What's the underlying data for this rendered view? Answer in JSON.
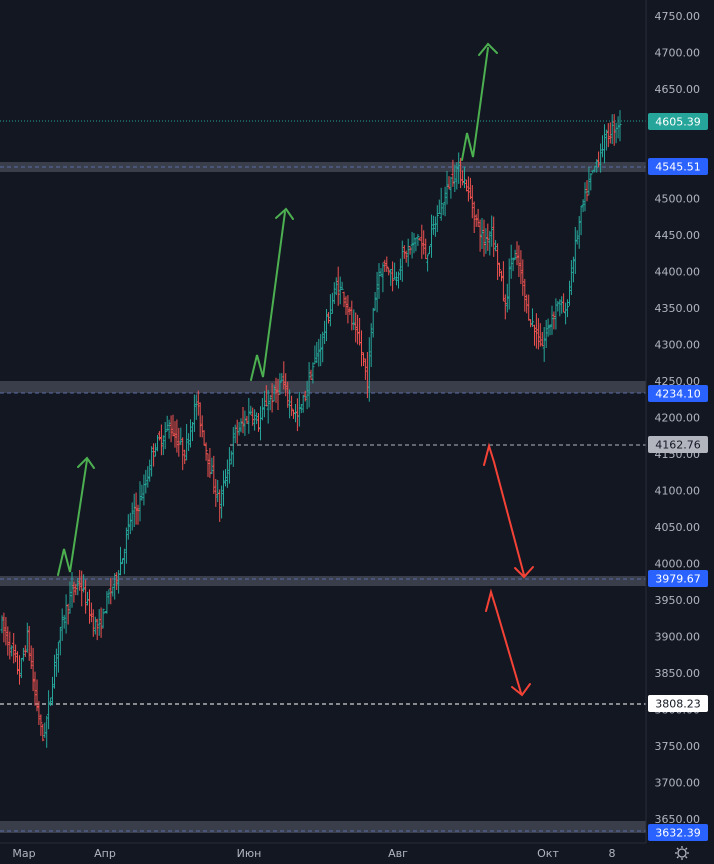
{
  "chart_data": {
    "type": "ohlc",
    "title": "",
    "xlabel": "",
    "ylabel": "",
    "ylim": [
      3622,
      4765
    ],
    "y_ticks": [
      3650,
      3700,
      3750,
      3800,
      3850,
      3900,
      3950,
      4000,
      4050,
      4100,
      4150,
      4200,
      4250,
      4300,
      4350,
      4400,
      4450,
      4500,
      4550,
      4600,
      4650,
      4700,
      4750
    ],
    "x_ticks": [
      "Мар",
      "Апр",
      "Июн",
      "Авг",
      "Окт",
      "8"
    ],
    "grid": false,
    "colors": {
      "background": "#131722",
      "up": "#26a69a",
      "down": "#ef5350",
      "zone": "#363a45",
      "arrow_up": "#4caf50",
      "arrow_down": "#f44336",
      "price_tag_last": "#26a69a",
      "price_tag_level": "#2962ff",
      "price_tag_grey": "#b2b5be",
      "price_tag_white": "#ffffff"
    },
    "last_price": 4605.39,
    "levels": [
      {
        "value": 4545.51,
        "style": "zone",
        "label": "4545.51"
      },
      {
        "value": 4234.1,
        "style": "zone",
        "label": "4234.10"
      },
      {
        "value": 3979.67,
        "style": "zone",
        "label": "3979.67"
      },
      {
        "value": 3632.39,
        "style": "zone",
        "label": "3632.39"
      },
      {
        "value": 4162.76,
        "style": "dashed",
        "label": "4162.76"
      },
      {
        "value": 3808.23,
        "style": "dashed",
        "label": "3808.23"
      }
    ],
    "price_labels": {
      "last": "4605.39",
      "l4545": "4545.51",
      "l4234": "4234.10",
      "l4162": "4162.76",
      "l3979": "3979.67",
      "l3808": "3808.23",
      "l3632": "3632.39"
    },
    "close_path": [
      [
        0,
        3915
      ],
      [
        5,
        3880
      ],
      [
        9,
        3850
      ],
      [
        13,
        3900
      ],
      [
        17,
        3820
      ],
      [
        21,
        3760
      ],
      [
        24,
        3800
      ],
      [
        28,
        3880
      ],
      [
        32,
        3930
      ],
      [
        36,
        3960
      ],
      [
        40,
        3975
      ],
      [
        43,
        3950
      ],
      [
        47,
        3920
      ],
      [
        50,
        3910
      ],
      [
        54,
        3950
      ],
      [
        58,
        3975
      ],
      [
        62,
        4010
      ],
      [
        66,
        4060
      ],
      [
        70,
        4080
      ],
      [
        74,
        4110
      ],
      [
        78,
        4160
      ],
      [
        82,
        4170
      ],
      [
        86,
        4190
      ],
      [
        90,
        4170
      ],
      [
        94,
        4150
      ],
      [
        97,
        4190
      ],
      [
        100,
        4220
      ],
      [
        104,
        4170
      ],
      [
        108,
        4120
      ],
      [
        112,
        4080
      ],
      [
        116,
        4130
      ],
      [
        120,
        4180
      ],
      [
        124,
        4190
      ],
      [
        128,
        4210
      ],
      [
        132,
        4190
      ],
      [
        136,
        4220
      ],
      [
        140,
        4230
      ],
      [
        144,
        4250
      ],
      [
        148,
        4220
      ],
      [
        152,
        4200
      ],
      [
        156,
        4230
      ],
      [
        160,
        4270
      ],
      [
        164,
        4300
      ],
      [
        168,
        4340
      ],
      [
        172,
        4380
      ],
      [
        176,
        4370
      ],
      [
        180,
        4330
      ],
      [
        184,
        4300
      ],
      [
        188,
        4250
      ],
      [
        191,
        4350
      ],
      [
        194,
        4400
      ],
      [
        198,
        4410
      ],
      [
        202,
        4390
      ],
      [
        206,
        4420
      ],
      [
        210,
        4430
      ],
      [
        214,
        4450
      ],
      [
        218,
        4420
      ],
      [
        222,
        4460
      ],
      [
        226,
        4490
      ],
      [
        230,
        4520
      ],
      [
        234,
        4540
      ],
      [
        237,
        4530
      ],
      [
        240,
        4510
      ],
      [
        244,
        4470
      ],
      [
        248,
        4440
      ],
      [
        252,
        4460
      ],
      [
        256,
        4400
      ],
      [
        259,
        4350
      ],
      [
        262,
        4420
      ],
      [
        266,
        4410
      ],
      [
        270,
        4350
      ],
      [
        274,
        4320
      ],
      [
        278,
        4300
      ],
      [
        282,
        4330
      ],
      [
        286,
        4360
      ],
      [
        290,
        4340
      ],
      [
        294,
        4420
      ],
      [
        298,
        4480
      ],
      [
        302,
        4520
      ],
      [
        306,
        4550
      ],
      [
        310,
        4580
      ],
      [
        314,
        4595
      ],
      [
        318,
        4605
      ]
    ]
  }
}
